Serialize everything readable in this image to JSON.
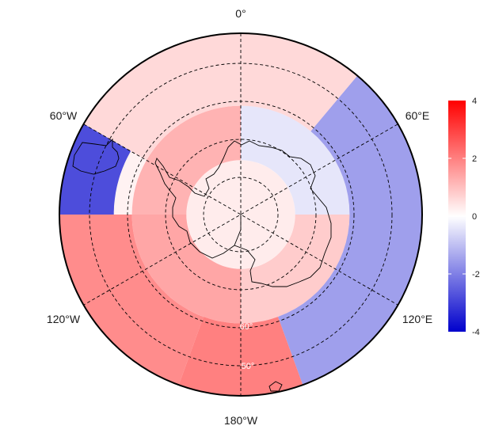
{
  "map": {
    "projection": "south-polar-stereographic",
    "longitude_labels": {
      "top": "0°",
      "bottom": "180°W",
      "upper_left": "60°W",
      "upper_right": "60°E",
      "lower_left": "120°W",
      "lower_right": "120°E"
    },
    "latitude_labels": [
      "60°",
      "50°"
    ],
    "graticule_style": "dashed",
    "coastlines": [
      "Antarctica",
      "South America tip",
      "New Zealand (South Island tip)"
    ]
  },
  "colorbar": {
    "ticks": [
      "4",
      "2",
      "0",
      "-2",
      "-4"
    ],
    "range": [
      -4,
      4
    ],
    "colors": {
      "high": "#ff0000",
      "mid": "#ffffff",
      "low": "#0000cc"
    }
  },
  "chart_data": {
    "type": "heatmap",
    "description_of_values": "anomaly field on polar grid",
    "value_range": [
      -4,
      4
    ],
    "color_scale": [
      "#0000cc",
      "#ffffff",
      "#ff0000"
    ],
    "regions": [
      {
        "lon_from": -180,
        "lon_to": 180,
        "lat_from": -90,
        "lat_to": -75,
        "value": 0.3
      },
      {
        "lon_from": -90,
        "lon_to": 0,
        "lat_from": -75,
        "lat_to": -60,
        "value": 1.2
      },
      {
        "lon_from": 0,
        "lon_to": 90,
        "lat_from": -75,
        "lat_to": -60,
        "value": -0.4
      },
      {
        "lon_from": 90,
        "lon_to": 180,
        "lat_from": -75,
        "lat_to": -60,
        "value": 0.8
      },
      {
        "lon_from": -180,
        "lon_to": -90,
        "lat_from": -75,
        "lat_to": -60,
        "value": 1.4
      },
      {
        "lon_from": 40,
        "lon_to": 160,
        "lat_from": -60,
        "lat_to": -40,
        "value": -1.5
      },
      {
        "lon_from": 160,
        "lon_to": 200,
        "lat_from": -60,
        "lat_to": -40,
        "value": 2.0
      },
      {
        "lon_from": -160,
        "lon_to": -90,
        "lat_from": -60,
        "lat_to": -40,
        "value": 1.8
      },
      {
        "lon_from": -90,
        "lon_to": -60,
        "lat_from": -55,
        "lat_to": -35,
        "value": -2.8
      },
      {
        "lon_from": -60,
        "lon_to": 40,
        "lat_from": -60,
        "lat_to": -40,
        "value": 0.6
      }
    ]
  }
}
